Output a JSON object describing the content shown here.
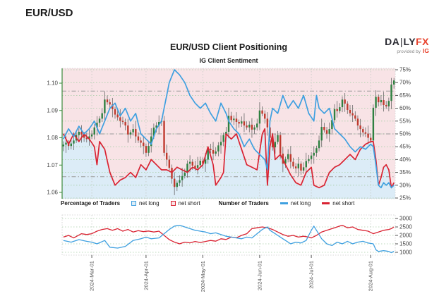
{
  "page": {
    "instrument_title": "EUR/USD"
  },
  "chart": {
    "title": "EUR/USD Client Positioning",
    "subtitle": "IG Client Sentiment"
  },
  "logo": {
    "da": "DA",
    "bar": "|",
    "ly": "LY",
    "fx": "FX",
    "provided_by": "provided by",
    "ig": "IG"
  },
  "legend": {
    "pct_group": "Percentage of Traders",
    "pct_long": "net long",
    "pct_short": "net short",
    "num_group": "Number of Traders",
    "num_long": "net long",
    "num_short": "net short"
  },
  "colors": {
    "net_long_line": "#3fa0e0",
    "net_short_line": "#d92332",
    "long_fill": "#dcecf7",
    "short_fill": "#f8e3e6",
    "candle_up": "#2e8040",
    "candle_down": "#bf3a2e",
    "wick": "#666666",
    "grid_green": "#a6cda6",
    "grid_gray": "#999999",
    "axis_green": "#3c8a3c",
    "frame": "#cccccc",
    "tick_text": "#444444"
  },
  "chart_data": {
    "type": "candlestick+line",
    "title": "EUR/USD Client Positioning",
    "subtitle": "IG Client Sentiment",
    "start_date": "2024-02-15",
    "end_date": "2024-08-14",
    "price_axis": {
      "side": "left",
      "ticks": [
        "1.10",
        "1.09",
        "1.08",
        "1.07",
        "1.06"
      ],
      "tick_values": [
        1.1,
        1.09,
        1.08,
        1.07,
        1.06
      ]
    },
    "pct_axis": {
      "side": "right",
      "ticks": [
        "75%",
        "70%",
        "65%",
        "60%",
        "55%",
        "50%",
        "45%",
        "40%",
        "35%",
        "30%",
        "25%"
      ],
      "tick_values": [
        75,
        70,
        65,
        60,
        55,
        50,
        45,
        40,
        35,
        30,
        25
      ]
    },
    "count_axis": {
      "side": "right",
      "ticks": [
        "3000",
        "2500",
        "2000",
        "1500",
        "1000"
      ],
      "tick_values": [
        3000,
        2500,
        2000,
        1500,
        1000
      ]
    },
    "threshold_lines_pct": [
      66.7,
      50,
      33.3
    ],
    "month_ticks": [
      {
        "label": "2024-Mar-01",
        "index": 11
      },
      {
        "label": "2024-Apr-01",
        "index": 32
      },
      {
        "label": "2024-May-01",
        "index": 54
      },
      {
        "label": "2024-Jun-01",
        "index": 76
      },
      {
        "label": "2024-Jul-01",
        "index": 96
      },
      {
        "label": "2024-Aug-01",
        "index": 119
      }
    ],
    "closes": [
      1.0775,
      1.0782,
      1.077,
      1.0779,
      1.079,
      1.081,
      1.0822,
      1.0812,
      1.08,
      1.0795,
      1.0805,
      1.0812,
      1.0838,
      1.0855,
      1.087,
      1.089,
      1.094,
      1.093,
      1.0922,
      1.0905,
      1.0885,
      1.0875,
      1.0862,
      1.0858,
      1.0845,
      1.0812,
      1.082,
      1.0832,
      1.0805,
      1.079,
      1.0782,
      1.077,
      1.0745,
      1.077,
      1.0805,
      1.0837,
      1.0845,
      1.0858,
      1.0862,
      1.0745,
      1.072,
      1.069,
      1.065,
      1.062,
      1.0635,
      1.0645,
      1.066,
      1.0672,
      1.0705,
      1.0712,
      1.0698,
      1.069,
      1.07,
      1.0716,
      1.0705,
      1.072,
      1.076,
      1.0755,
      1.0742,
      1.075,
      1.0772,
      1.0785,
      1.081,
      1.0822,
      1.088,
      1.0865,
      1.087,
      1.0858,
      1.0852,
      1.086,
      1.0845,
      1.0838,
      1.0848,
      1.083,
      1.0838,
      1.0852,
      1.09,
      1.0888,
      1.087,
      1.0838,
      1.08,
      1.0765,
      1.0785,
      1.081,
      1.0742,
      1.0705,
      1.0722,
      1.074,
      1.0712,
      1.0695,
      1.0688,
      1.0705,
      1.068,
      1.0692,
      1.0715,
      1.0722,
      1.0735,
      1.0745,
      1.0762,
      1.079,
      1.084,
      1.0828,
      1.0815,
      1.0832,
      1.0865,
      1.0905,
      1.0898,
      1.0912,
      1.094,
      1.0925,
      1.0902,
      1.089,
      1.0882,
      1.087,
      1.0845,
      1.0832,
      1.082,
      1.0815,
      1.08,
      1.079,
      1.091,
      1.095,
      1.093,
      1.0938,
      1.092,
      1.0915,
      1.0935,
      1.0995,
      1.101
    ],
    "pct_net_long_keys": [
      [
        0,
        48
      ],
      [
        2,
        52
      ],
      [
        4,
        49
      ],
      [
        6,
        53
      ],
      [
        8,
        50
      ],
      [
        10,
        52
      ],
      [
        12,
        55
      ],
      [
        14,
        50
      ],
      [
        16,
        55
      ],
      [
        18,
        60
      ],
      [
        20,
        62
      ],
      [
        22,
        57
      ],
      [
        24,
        60
      ],
      [
        26,
        55
      ],
      [
        28,
        58
      ],
      [
        30,
        50
      ],
      [
        32,
        48
      ],
      [
        34,
        46
      ],
      [
        36,
        52
      ],
      [
        38,
        55
      ],
      [
        39,
        60
      ],
      [
        41,
        70
      ],
      [
        43,
        75
      ],
      [
        45,
        73
      ],
      [
        47,
        70
      ],
      [
        49,
        65
      ],
      [
        51,
        62
      ],
      [
        53,
        60
      ],
      [
        55,
        62
      ],
      [
        57,
        58
      ],
      [
        59,
        55
      ],
      [
        61,
        62
      ],
      [
        63,
        58
      ],
      [
        64,
        55
      ],
      [
        66,
        52
      ],
      [
        68,
        50
      ],
      [
        70,
        45
      ],
      [
        72,
        48
      ],
      [
        74,
        44
      ],
      [
        76,
        42
      ],
      [
        78,
        40
      ],
      [
        79,
        36
      ],
      [
        80,
        55
      ],
      [
        81,
        60
      ],
      [
        83,
        58
      ],
      [
        85,
        65
      ],
      [
        87,
        60
      ],
      [
        89,
        63
      ],
      [
        91,
        60
      ],
      [
        93,
        65
      ],
      [
        95,
        58
      ],
      [
        97,
        55
      ],
      [
        98,
        65
      ],
      [
        99,
        60
      ],
      [
        101,
        58
      ],
      [
        103,
        60
      ],
      [
        105,
        52
      ],
      [
        107,
        50
      ],
      [
        109,
        48
      ],
      [
        111,
        45
      ],
      [
        113,
        43
      ],
      [
        115,
        45
      ],
      [
        117,
        44
      ],
      [
        119,
        46
      ],
      [
        120,
        45
      ],
      [
        121,
        38
      ],
      [
        122,
        30
      ],
      [
        123,
        29
      ],
      [
        124,
        31
      ],
      [
        125,
        30
      ],
      [
        126,
        31
      ],
      [
        127,
        29
      ],
      [
        128,
        30
      ]
    ],
    "pct_net_short_keys": [
      [
        0,
        50
      ],
      [
        2,
        46
      ],
      [
        4,
        50
      ],
      [
        6,
        47
      ],
      [
        8,
        50
      ],
      [
        10,
        48
      ],
      [
        12,
        45
      ],
      [
        13,
        38
      ],
      [
        14,
        47
      ],
      [
        16,
        44
      ],
      [
        18,
        35
      ],
      [
        20,
        30
      ],
      [
        22,
        32
      ],
      [
        24,
        33
      ],
      [
        26,
        35
      ],
      [
        28,
        33
      ],
      [
        30,
        38
      ],
      [
        32,
        36
      ],
      [
        34,
        40
      ],
      [
        36,
        38
      ],
      [
        38,
        36
      ],
      [
        40,
        36
      ],
      [
        42,
        35
      ],
      [
        44,
        37
      ],
      [
        46,
        36
      ],
      [
        48,
        35
      ],
      [
        50,
        37
      ],
      [
        52,
        36
      ],
      [
        54,
        38
      ],
      [
        56,
        45
      ],
      [
        58,
        38
      ],
      [
        59,
        30
      ],
      [
        61,
        33
      ],
      [
        62,
        35
      ],
      [
        63,
        50
      ],
      [
        65,
        48
      ],
      [
        67,
        50
      ],
      [
        69,
        44
      ],
      [
        71,
        38
      ],
      [
        73,
        37
      ],
      [
        75,
        36
      ],
      [
        77,
        50
      ],
      [
        78,
        52
      ],
      [
        79,
        30
      ],
      [
        80,
        45
      ],
      [
        81,
        50
      ],
      [
        82,
        40
      ],
      [
        84,
        42
      ],
      [
        86,
        38
      ],
      [
        88,
        34
      ],
      [
        90,
        31
      ],
      [
        92,
        30
      ],
      [
        94,
        35
      ],
      [
        96,
        37
      ],
      [
        97,
        30
      ],
      [
        99,
        29
      ],
      [
        101,
        30
      ],
      [
        103,
        35
      ],
      [
        105,
        37
      ],
      [
        107,
        38
      ],
      [
        109,
        40
      ],
      [
        111,
        42
      ],
      [
        113,
        40
      ],
      [
        115,
        44
      ],
      [
        117,
        46
      ],
      [
        119,
        47
      ],
      [
        120,
        47
      ],
      [
        121,
        40
      ],
      [
        122,
        30
      ],
      [
        123,
        33
      ],
      [
        124,
        37
      ],
      [
        125,
        38
      ],
      [
        126,
        36
      ],
      [
        127,
        29
      ],
      [
        128,
        31
      ]
    ],
    "count_net_long_keys": [
      [
        0,
        1700
      ],
      [
        3,
        1600
      ],
      [
        6,
        1750
      ],
      [
        9,
        1650
      ],
      [
        11,
        1600
      ],
      [
        13,
        1500
      ],
      [
        16,
        1700
      ],
      [
        18,
        1300
      ],
      [
        21,
        1250
      ],
      [
        24,
        1350
      ],
      [
        27,
        1700
      ],
      [
        30,
        1800
      ],
      [
        32,
        1900
      ],
      [
        34,
        1800
      ],
      [
        37,
        1850
      ],
      [
        39,
        2100
      ],
      [
        41,
        2350
      ],
      [
        43,
        2550
      ],
      [
        45,
        2600
      ],
      [
        47,
        2500
      ],
      [
        49,
        2400
      ],
      [
        51,
        2300
      ],
      [
        53,
        2250
      ],
      [
        55,
        2200
      ],
      [
        57,
        2100
      ],
      [
        59,
        2150
      ],
      [
        61,
        2050
      ],
      [
        63,
        1950
      ],
      [
        65,
        1900
      ],
      [
        67,
        1850
      ],
      [
        69,
        1800
      ],
      [
        71,
        1900
      ],
      [
        73,
        1850
      ],
      [
        75,
        2100
      ],
      [
        77,
        2350
      ],
      [
        79,
        2500
      ],
      [
        80,
        2300
      ],
      [
        82,
        2100
      ],
      [
        84,
        1900
      ],
      [
        86,
        1700
      ],
      [
        88,
        1500
      ],
      [
        90,
        1600
      ],
      [
        92,
        1550
      ],
      [
        94,
        1700
      ],
      [
        96,
        2300
      ],
      [
        97,
        2550
      ],
      [
        98,
        2300
      ],
      [
        100,
        1800
      ],
      [
        102,
        1500
      ],
      [
        104,
        1400
      ],
      [
        106,
        1600
      ],
      [
        108,
        1500
      ],
      [
        110,
        1650
      ],
      [
        112,
        1500
      ],
      [
        114,
        1600
      ],
      [
        116,
        1650
      ],
      [
        118,
        1550
      ],
      [
        120,
        1500
      ],
      [
        121,
        1150
      ],
      [
        122,
        1050
      ],
      [
        124,
        1100
      ],
      [
        126,
        1050
      ],
      [
        127,
        980
      ],
      [
        128,
        1060
      ]
    ],
    "count_net_short_keys": [
      [
        0,
        1900
      ],
      [
        2,
        2000
      ],
      [
        4,
        1850
      ],
      [
        7,
        2100
      ],
      [
        9,
        2050
      ],
      [
        11,
        2100
      ],
      [
        13,
        2250
      ],
      [
        15,
        2350
      ],
      [
        17,
        2400
      ],
      [
        19,
        2300
      ],
      [
        21,
        2400
      ],
      [
        23,
        2250
      ],
      [
        25,
        2350
      ],
      [
        27,
        2200
      ],
      [
        29,
        2280
      ],
      [
        31,
        2220
      ],
      [
        33,
        2260
      ],
      [
        35,
        2200
      ],
      [
        37,
        2250
      ],
      [
        39,
        2000
      ],
      [
        41,
        1750
      ],
      [
        43,
        1600
      ],
      [
        45,
        1500
      ],
      [
        47,
        1600
      ],
      [
        49,
        1560
      ],
      [
        51,
        1640
      ],
      [
        53,
        1580
      ],
      [
        55,
        1640
      ],
      [
        57,
        1700
      ],
      [
        59,
        1660
      ],
      [
        61,
        1800
      ],
      [
        63,
        1760
      ],
      [
        65,
        1900
      ],
      [
        67,
        1860
      ],
      [
        69,
        2000
      ],
      [
        71,
        2100
      ],
      [
        73,
        2400
      ],
      [
        75,
        2450
      ],
      [
        77,
        2500
      ],
      [
        79,
        2450
      ],
      [
        81,
        2350
      ],
      [
        83,
        2200
      ],
      [
        85,
        2050
      ],
      [
        87,
        1950
      ],
      [
        89,
        2000
      ],
      [
        91,
        1900
      ],
      [
        93,
        1950
      ],
      [
        95,
        1900
      ],
      [
        96,
        1850
      ],
      [
        98,
        2000
      ],
      [
        100,
        2200
      ],
      [
        102,
        2300
      ],
      [
        104,
        2400
      ],
      [
        106,
        2500
      ],
      [
        108,
        2600
      ],
      [
        110,
        2450
      ],
      [
        112,
        2500
      ],
      [
        114,
        2350
      ],
      [
        116,
        2300
      ],
      [
        118,
        2250
      ],
      [
        120,
        2100
      ],
      [
        121,
        2150
      ],
      [
        122,
        2200
      ],
      [
        124,
        2300
      ],
      [
        126,
        2350
      ],
      [
        127,
        2400
      ],
      [
        128,
        2500
      ]
    ],
    "layout_hints": {
      "fill_rule": "pink above net-short line, light blue below it",
      "grid": "green dotted horizontals each 5%, gray dash-dot at 33.3/50/66.7%",
      "legend_position": "between panels"
    }
  }
}
